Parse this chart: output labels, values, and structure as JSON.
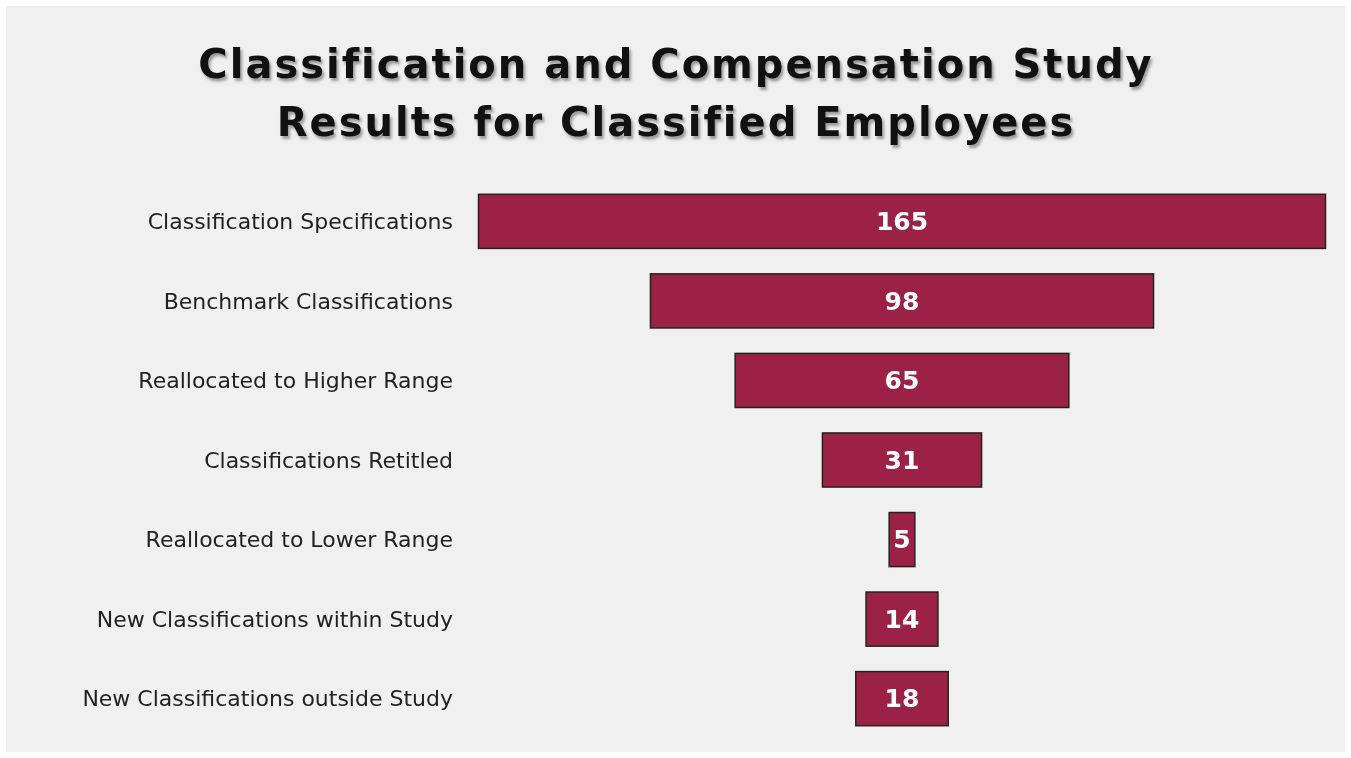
{
  "chart_data": {
    "type": "other",
    "title": "Classification and Compensation Study\nResults for Classified Employees",
    "categories": [
      "Classification Specifications",
      "Benchmark Classifications",
      "Reallocated to Higher Range",
      "Classifications Retitled",
      "Reallocated to Lower Range",
      "New Classifications within Study",
      "New Classifications outside Study"
    ],
    "values": [
      165,
      98,
      65,
      31,
      5,
      14,
      18
    ],
    "color": "#9b2246",
    "data_labels": true
  }
}
